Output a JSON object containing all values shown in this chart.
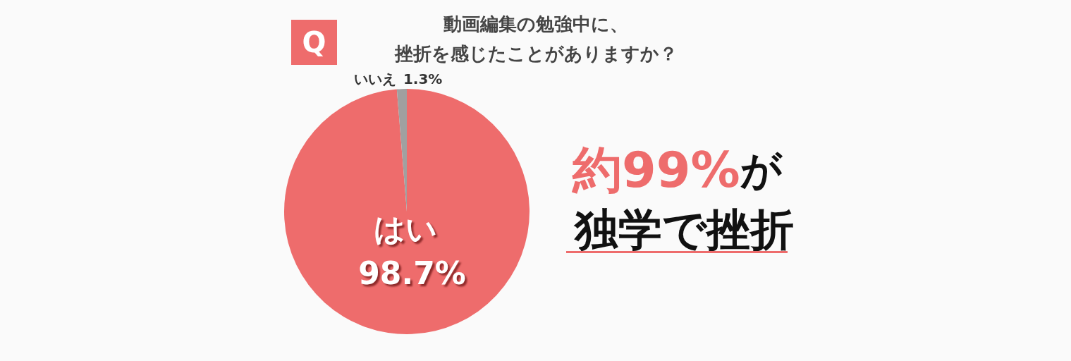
{
  "chart_data": {
    "type": "pie",
    "title": "動画編集の勉強中に、",
    "subtitle": "挫折を感じたことがありますか？",
    "categories": [
      "はい",
      "いいえ"
    ],
    "values": [
      98.7,
      1.3
    ],
    "colors": [
      "#ee6c6c",
      "#a0a0a0"
    ],
    "value_labels": [
      "98.7%",
      "1.3%"
    ],
    "annotations": [
      "Q",
      "約99%",
      "が",
      "独学で挫折"
    ]
  }
}
